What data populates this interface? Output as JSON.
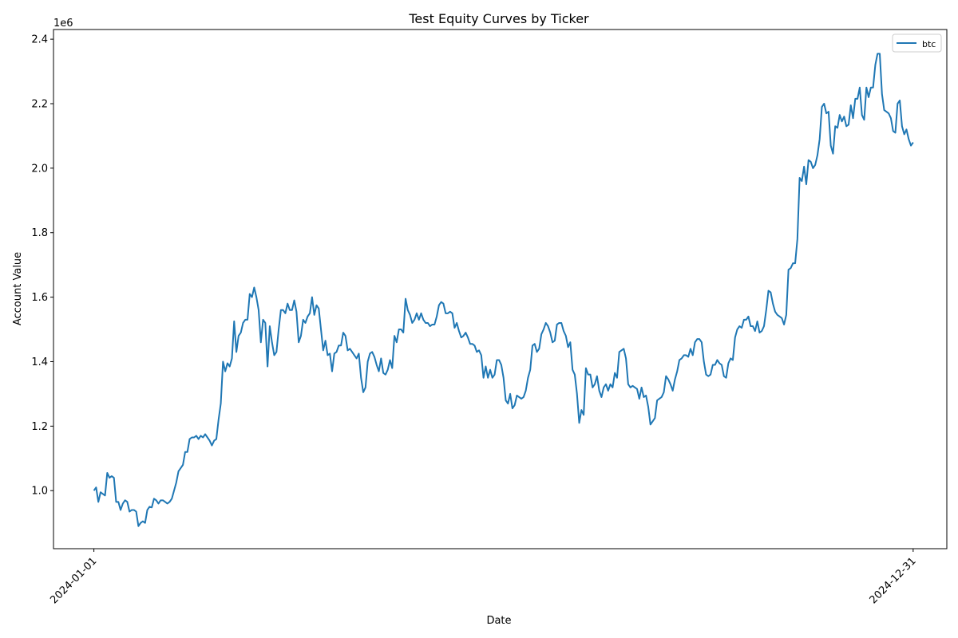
{
  "chart_data": {
    "type": "line",
    "title": "Test Equity Curves by Ticker",
    "xlabel": "Date",
    "ylabel": "Account Value",
    "offset_text": "1e6",
    "x_start": "2024-01-01",
    "x_end": "2024-12-31",
    "x_ticks": [
      "2024-01-01",
      "2024-12-31"
    ],
    "y_ticks": [
      1.0,
      1.2,
      1.4,
      1.6,
      1.8,
      2.0,
      2.2,
      2.4
    ],
    "y_tick_labels": [
      "1.0",
      "1.2",
      "1.4",
      "1.6",
      "1.8",
      "2.0",
      "2.2",
      "2.4"
    ],
    "ylim": [
      0.82,
      2.43
    ],
    "xlim": [
      "2023-12-14",
      "2025-01-15"
    ],
    "legend_position": "top-right",
    "grid": false,
    "series": [
      {
        "name": "btc",
        "color": "#1f77b4",
        "values": [
          1.0,
          1.01,
          0.965,
          0.995,
          0.99,
          0.985,
          1.055,
          1.04,
          1.045,
          1.04,
          0.965,
          0.965,
          0.94,
          0.96,
          0.97,
          0.965,
          0.935,
          0.94,
          0.94,
          0.935,
          0.89,
          0.9,
          0.905,
          0.9,
          0.94,
          0.95,
          0.948,
          0.975,
          0.97,
          0.96,
          0.97,
          0.97,
          0.965,
          0.96,
          0.965,
          0.975,
          1.0,
          1.025,
          1.06,
          1.07,
          1.08,
          1.12,
          1.12,
          1.16,
          1.165,
          1.165,
          1.17,
          1.16,
          1.17,
          1.165,
          1.175,
          1.165,
          1.155,
          1.14,
          1.155,
          1.16,
          1.22,
          1.27,
          1.4,
          1.37,
          1.395,
          1.385,
          1.41,
          1.525,
          1.43,
          1.48,
          1.49,
          1.52,
          1.53,
          1.53,
          1.61,
          1.6,
          1.63,
          1.6,
          1.56,
          1.46,
          1.53,
          1.52,
          1.385,
          1.51,
          1.46,
          1.42,
          1.43,
          1.5,
          1.56,
          1.56,
          1.55,
          1.58,
          1.56,
          1.56,
          1.59,
          1.555,
          1.46,
          1.48,
          1.53,
          1.52,
          1.54,
          1.55,
          1.6,
          1.545,
          1.575,
          1.565,
          1.5,
          1.435,
          1.465,
          1.42,
          1.425,
          1.37,
          1.425,
          1.43,
          1.45,
          1.45,
          1.49,
          1.48,
          1.435,
          1.44,
          1.43,
          1.42,
          1.41,
          1.425,
          1.35,
          1.305,
          1.32,
          1.4,
          1.425,
          1.43,
          1.415,
          1.39,
          1.37,
          1.41,
          1.365,
          1.36,
          1.375,
          1.405,
          1.38,
          1.48,
          1.46,
          1.5,
          1.5,
          1.49,
          1.595,
          1.56,
          1.545,
          1.52,
          1.53,
          1.55,
          1.53,
          1.55,
          1.53,
          1.52,
          1.52,
          1.51,
          1.515,
          1.515,
          1.54,
          1.575,
          1.585,
          1.58,
          1.55,
          1.55,
          1.555,
          1.55,
          1.505,
          1.52,
          1.495,
          1.475,
          1.48,
          1.49,
          1.475,
          1.455,
          1.455,
          1.45,
          1.43,
          1.435,
          1.42,
          1.35,
          1.385,
          1.35,
          1.375,
          1.35,
          1.36,
          1.405,
          1.405,
          1.39,
          1.35,
          1.28,
          1.27,
          1.3,
          1.255,
          1.265,
          1.295,
          1.29,
          1.285,
          1.29,
          1.31,
          1.35,
          1.375,
          1.45,
          1.455,
          1.43,
          1.44,
          1.485,
          1.5,
          1.52,
          1.51,
          1.49,
          1.46,
          1.465,
          1.515,
          1.52,
          1.52,
          1.495,
          1.48,
          1.445,
          1.46,
          1.375,
          1.36,
          1.3,
          1.21,
          1.25,
          1.235,
          1.38,
          1.36,
          1.36,
          1.32,
          1.33,
          1.355,
          1.31,
          1.29,
          1.32,
          1.33,
          1.31,
          1.33,
          1.32,
          1.365,
          1.35,
          1.43,
          1.435,
          1.44,
          1.41,
          1.33,
          1.32,
          1.325,
          1.32,
          1.315,
          1.285,
          1.32,
          1.29,
          1.295,
          1.26,
          1.205,
          1.215,
          1.225,
          1.28,
          1.285,
          1.29,
          1.305,
          1.355,
          1.345,
          1.33,
          1.31,
          1.345,
          1.37,
          1.405,
          1.41,
          1.42,
          1.42,
          1.415,
          1.44,
          1.42,
          1.46,
          1.47,
          1.47,
          1.46,
          1.4,
          1.36,
          1.355,
          1.36,
          1.39,
          1.39,
          1.405,
          1.395,
          1.39,
          1.355,
          1.35,
          1.395,
          1.41,
          1.405,
          1.475,
          1.5,
          1.51,
          1.505,
          1.53,
          1.53,
          1.54,
          1.51,
          1.51,
          1.495,
          1.525,
          1.49,
          1.495,
          1.51,
          1.56,
          1.62,
          1.615,
          1.58,
          1.555,
          1.545,
          1.54,
          1.535,
          1.515,
          1.545,
          1.685,
          1.69,
          1.705,
          1.705,
          1.78,
          1.97,
          1.96,
          2.005,
          1.95,
          2.025,
          2.02,
          2.0,
          2.01,
          2.04,
          2.09,
          2.19,
          2.2,
          2.17,
          2.175,
          2.07,
          2.045,
          2.13,
          2.125,
          2.165,
          2.145,
          2.16,
          2.13,
          2.135,
          2.195,
          2.155,
          2.215,
          2.215,
          2.25,
          2.165,
          2.15,
          2.25,
          2.22,
          2.25,
          2.25,
          2.32,
          2.355,
          2.355,
          2.23,
          2.18,
          2.175,
          2.17,
          2.155,
          2.115,
          2.11,
          2.2,
          2.21,
          2.13,
          2.105,
          2.12,
          2.09,
          2.07,
          2.08
        ]
      }
    ]
  }
}
